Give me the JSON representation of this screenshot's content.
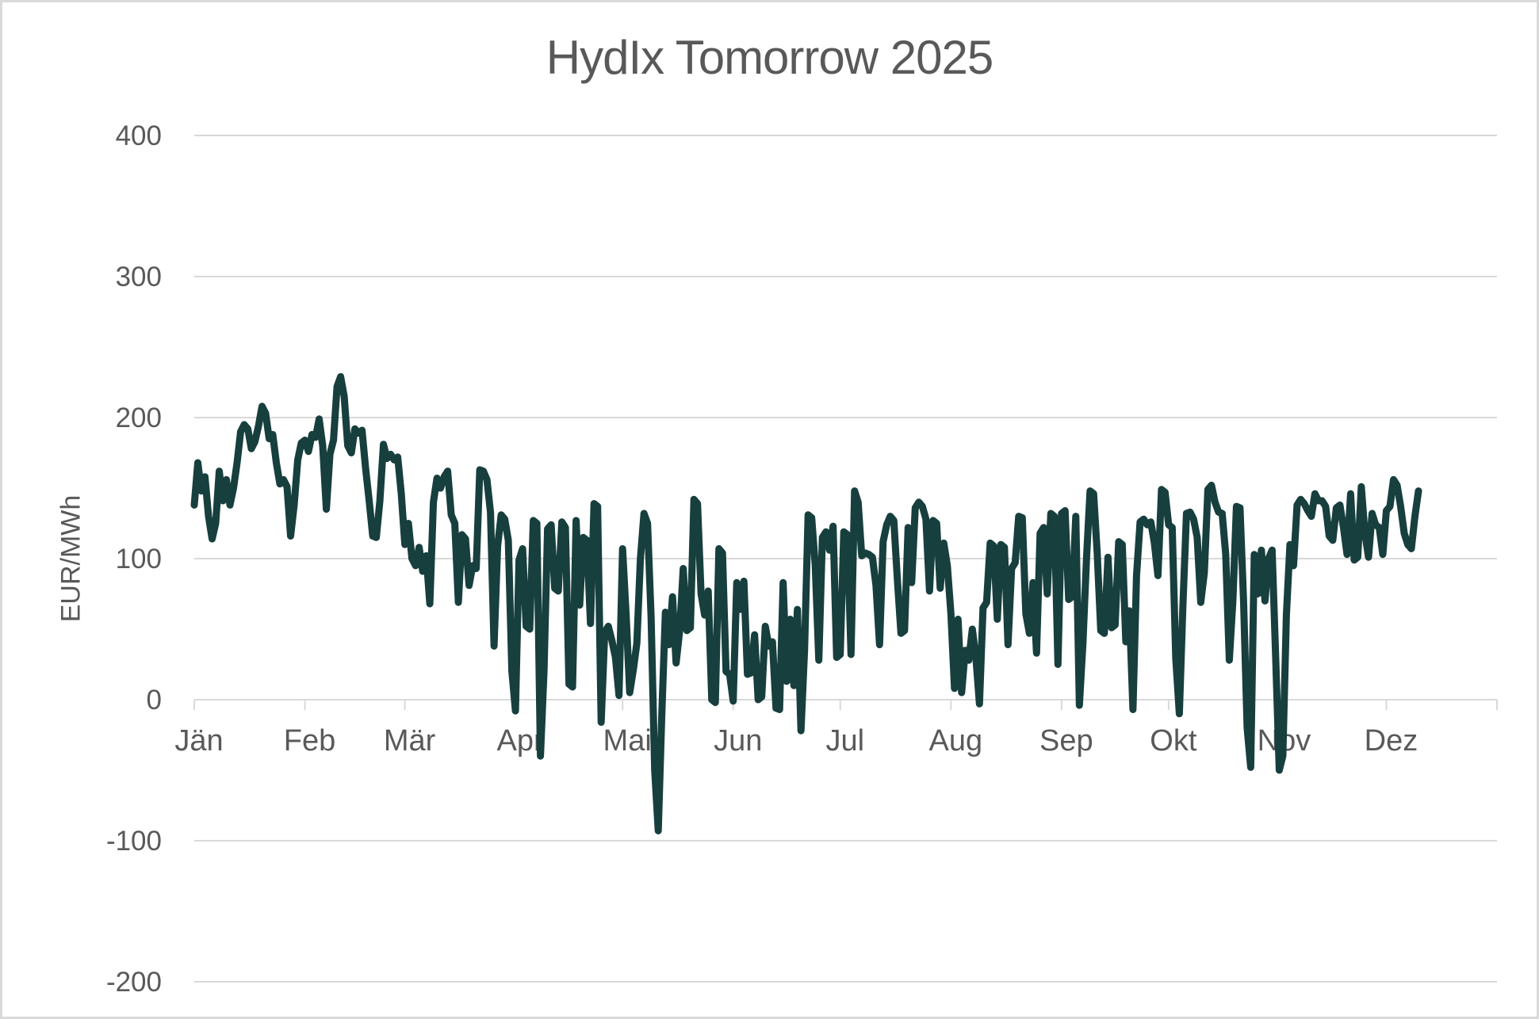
{
  "chart_data": {
    "type": "line",
    "title": "HydIx Tomorrow 2025",
    "ylabel": "EUR/MWh",
    "unit": "EUR/MWh",
    "ylim": [
      -200,
      400
    ],
    "yticks": [
      400,
      300,
      200,
      100,
      0,
      -100,
      -200
    ],
    "grid": "horizontal",
    "legend": "none",
    "categories": [
      "Jän",
      "Feb",
      "Mär",
      "Apr",
      "Mai",
      "Jun",
      "Jul",
      "Aug",
      "Sep",
      "Okt",
      "Nov",
      "Dez"
    ],
    "month_start_days": [
      1,
      32,
      60,
      91,
      121,
      152,
      182,
      213,
      244,
      274,
      305,
      335
    ],
    "days_in_year": 365,
    "line_color": "#173F3D",
    "axis_color": "#D9D9D9",
    "text_color": "#595959",
    "series": [
      {
        "name": "HydIx Tomorrow",
        "frequency": "daily",
        "start_day_of_year": 1,
        "values": [
          138,
          168,
          148,
          158,
          130,
          114,
          125,
          162,
          141,
          156,
          138,
          150,
          168,
          190,
          195,
          192,
          178,
          183,
          194,
          208,
          203,
          185,
          188,
          168,
          153,
          156,
          151,
          116,
          138,
          170,
          182,
          184,
          176,
          188,
          186,
          199,
          180,
          135,
          174,
          184,
          222,
          229,
          215,
          180,
          175,
          192,
          189,
          191,
          164,
          141,
          116,
          115,
          141,
          181,
          171,
          174,
          170,
          172,
          146,
          110,
          125,
          100,
          95,
          108,
          91,
          102,
          68,
          140,
          157,
          150,
          158,
          162,
          131,
          125,
          69,
          117,
          114,
          81,
          95,
          93,
          163,
          162,
          156,
          133,
          38,
          109,
          131,
          128,
          113,
          20,
          -8,
          99,
          107,
          52,
          50,
          127,
          125,
          -40,
          20,
          121,
          124,
          79,
          77,
          126,
          122,
          11,
          9,
          127,
          67,
          115,
          113,
          54,
          139,
          137,
          -16,
          48,
          52,
          42,
          30,
          3,
          107,
          60,
          5,
          21,
          40,
          100,
          132,
          125,
          58,
          -50,
          -93,
          -10,
          62,
          39,
          73,
          26,
          49,
          93,
          49,
          51,
          142,
          139,
          75,
          60,
          77,
          0,
          -2,
          107,
          104,
          20,
          18,
          -1,
          83,
          64,
          84,
          18,
          19,
          46,
          0,
          2,
          52,
          38,
          41,
          -6,
          -7,
          83,
          13,
          57,
          10,
          64,
          -22,
          35,
          131,
          129,
          95,
          28,
          115,
          119,
          106,
          123,
          30,
          32,
          119,
          117,
          32,
          148,
          140,
          102,
          104,
          103,
          101,
          81,
          39,
          112,
          124,
          130,
          127,
          85,
          47,
          49,
          122,
          83,
          136,
          140,
          137,
          128,
          77,
          127,
          125,
          79,
          111,
          95,
          61,
          8,
          57,
          5,
          35,
          28,
          50,
          30,
          -3,
          65,
          69,
          111,
          109,
          57,
          110,
          108,
          39,
          93,
          97,
          130,
          129,
          61,
          47,
          83,
          33,
          118,
          122,
          75,
          132,
          130,
          25,
          132,
          134,
          71,
          73,
          130,
          -4,
          40,
          100,
          148,
          146,
          104,
          49,
          47,
          101,
          51,
          53,
          112,
          110,
          41,
          63,
          -7,
          88,
          126,
          128,
          124,
          126,
          111,
          88,
          149,
          147,
          124,
          122,
          29,
          -10,
          67,
          132,
          133,
          128,
          115,
          69,
          90,
          149,
          152,
          140,
          133,
          132,
          103,
          28,
          70,
          137,
          136,
          70,
          -20,
          -48,
          103,
          75,
          106,
          70,
          100,
          106,
          30,
          -50,
          -40,
          60,
          110,
          95,
          138,
          142,
          139,
          134,
          130,
          146,
          141,
          141,
          137,
          116,
          113,
          136,
          138,
          122,
          103,
          146,
          99,
          101,
          151,
          118,
          101,
          132,
          124,
          122,
          103,
          134,
          137,
          156,
          152,
          137,
          118,
          110,
          107,
          130,
          148
        ]
      }
    ]
  }
}
